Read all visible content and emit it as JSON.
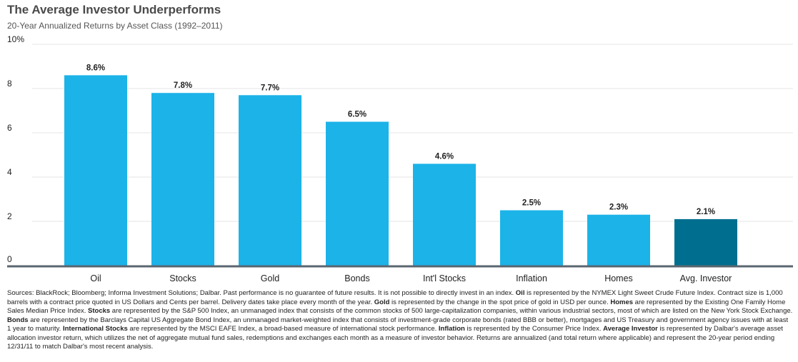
{
  "title": "The Average Investor Underperforms",
  "subtitle": "20-Year Annualized Returns by Asset Class (1992–2011)",
  "colors": {
    "bar": "#1cb3e8",
    "highlight": "#006f8f",
    "axis": "#5a6670",
    "grid": "#e4e4e4"
  },
  "chart_data": {
    "type": "bar",
    "title": "The Average Investor Underperforms",
    "subtitle": "20-Year Annualized Returns by Asset Class (1992–2011)",
    "categories": [
      "Oil",
      "Stocks",
      "Gold",
      "Bonds",
      "Int'l Stocks",
      "Inflation",
      "Homes",
      "Avg. Investor"
    ],
    "values": [
      8.6,
      7.8,
      7.7,
      6.5,
      4.6,
      2.5,
      2.3,
      2.1
    ],
    "value_labels": [
      "8.6%",
      "7.8%",
      "7.7%",
      "6.5%",
      "4.6%",
      "2.5%",
      "2.3%",
      "2.1%"
    ],
    "highlight_index": 7,
    "ylim": [
      0,
      10
    ],
    "yticks": [
      0,
      2,
      4,
      6,
      8,
      10
    ],
    "ytick_labels": [
      "0",
      "2",
      "4",
      "6",
      "8",
      "10%"
    ],
    "xlabel": "",
    "ylabel": "",
    "grid": true
  },
  "footnote": [
    {
      "t": "Sources: BlackRock; Bloomberg; Informa Investment Solutions; Dalbar. Past performance is no guarantee of future results. It is not possible to directly invest in an index. "
    },
    {
      "t": "Oil",
      "b": true
    },
    {
      "t": " is represented by the NYMEX Light Sweet Crude Future Index. Contract size is 1,000 barrels with a contract price quoted in US Dollars and Cents per barrel. Delivery dates take place every month of the year. "
    },
    {
      "t": "Gold",
      "b": true
    },
    {
      "t": " is represented by the change in the spot price of gold in USD per ounce. "
    },
    {
      "t": "Homes",
      "b": true
    },
    {
      "t": " are represented by the Existing One Family Home Sales Median Price Index. "
    },
    {
      "t": "Stocks",
      "b": true
    },
    {
      "t": " are represented by the S&P 500 Index, an unmanaged index that consists of the common stocks of 500 large-capitalization companies, within various industrial sectors, most of which are listed on the New York Stock Exchange. "
    },
    {
      "t": "Bonds",
      "b": true
    },
    {
      "t": " are represented by the Barclays Capital US Aggregate Bond Index, an unmanaged market-weighted index that consists of investment-grade corporate bonds (rated BBB or better), mortgages and US Treasury and government agency issues with at least 1 year to maturity. "
    },
    {
      "t": "International Stocks",
      "b": true
    },
    {
      "t": " are represented by the MSCI EAFE Index, a broad-based measure of international stock performance. "
    },
    {
      "t": "Inflation",
      "b": true
    },
    {
      "t": " is represented by the Consumer Price Index. "
    },
    {
      "t": "Average Investor",
      "b": true
    },
    {
      "t": " is represented by Dalbar's average asset allocation investor return, which utilizes the net of aggregate mutual fund sales, redemptions and exchanges each month as a measure of investor behavior. Returns are annualized (and total return where applicable) and represent the 20-year period ending 12/31/11 to match Dalbar's most recent analysis."
    }
  ]
}
